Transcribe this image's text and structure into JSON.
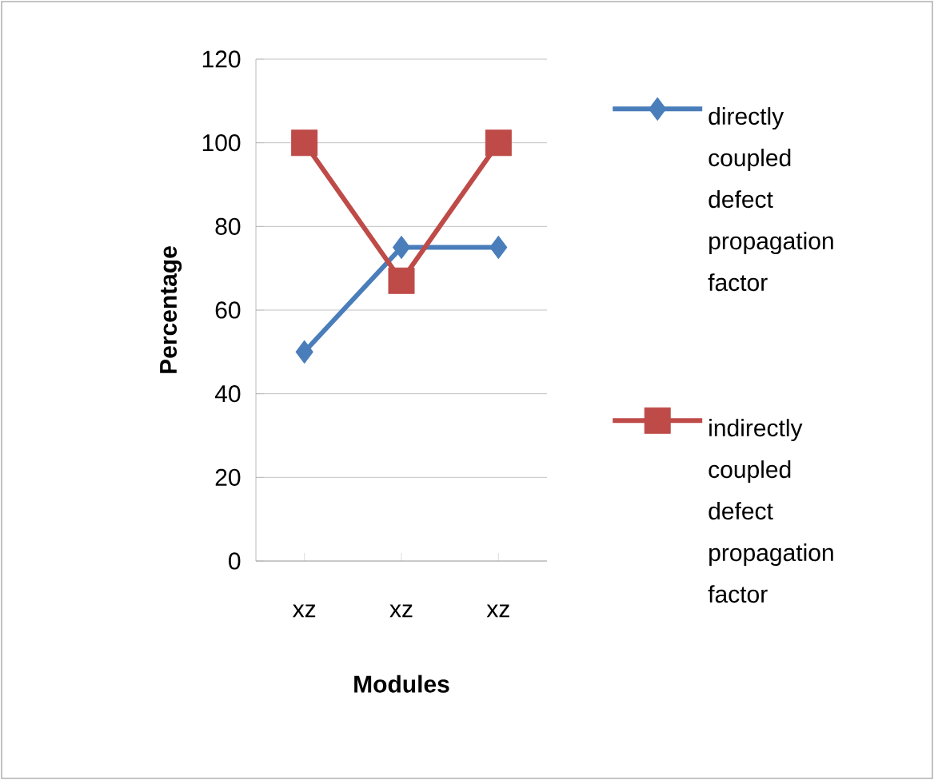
{
  "chart_data": {
    "type": "line",
    "xlabel": "Modules",
    "ylabel": "Percentage",
    "categories": [
      "xz",
      "xz",
      "xz"
    ],
    "series": [
      {
        "name": "directly coupled defect propagation factor",
        "color": "#4a7ebb",
        "marker": "diamond",
        "values": [
          50,
          75,
          75
        ]
      },
      {
        "name": "indirectly coupled defect propagation factor",
        "color": "#be4b48",
        "marker": "square",
        "values": [
          100,
          67,
          100
        ]
      }
    ],
    "ylim": [
      0,
      120
    ],
    "yticks": [
      0,
      20,
      40,
      60,
      80,
      100,
      120
    ],
    "grid": "y",
    "legend": "right",
    "line_style": "solid"
  }
}
